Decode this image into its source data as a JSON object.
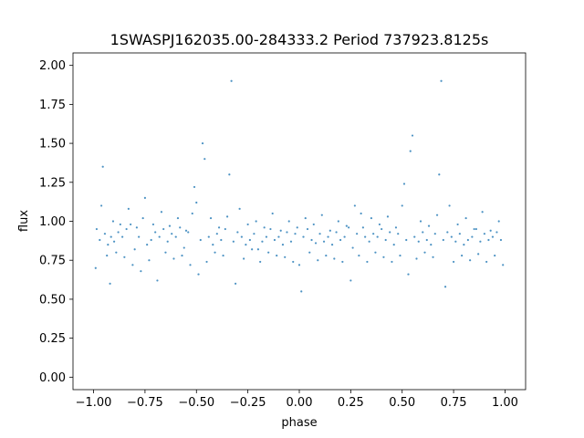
{
  "chart_data": {
    "type": "scatter",
    "title": "1SWASPJ162035.00-284333.2 Period 737923.8125s",
    "xlabel": "phase",
    "ylabel": "flux",
    "xlim": [
      -1.1,
      1.1
    ],
    "ylim": [
      -0.08,
      2.08
    ],
    "x_ticks": [
      -1.0,
      -0.75,
      -0.5,
      -0.25,
      0.0,
      0.25,
      0.5,
      0.75,
      1.0
    ],
    "x_tick_labels": [
      "−1.00",
      "−0.75",
      "−0.50",
      "−0.25",
      "0.00",
      "0.25",
      "0.50",
      "0.75",
      "1.00"
    ],
    "y_ticks": [
      0.0,
      0.25,
      0.5,
      0.75,
      1.0,
      1.25,
      1.5,
      1.75,
      2.0
    ],
    "y_tick_labels": [
      "0.00",
      "0.25",
      "0.50",
      "0.75",
      "1.00",
      "1.25",
      "1.50",
      "1.75",
      "2.00"
    ],
    "grid": false,
    "marker_color": "#1f77b4",
    "series": [
      {
        "x": [
          -0.985,
          -0.97,
          -0.962,
          -0.945,
          -0.93,
          -0.915,
          -0.9,
          -0.88,
          -0.86,
          -0.84,
          -0.82,
          -0.8,
          -0.78,
          -0.76,
          -0.74,
          -0.72,
          -0.7,
          -0.68,
          -0.66,
          -0.64,
          -0.62,
          -0.6,
          -0.58,
          -0.56,
          -0.54,
          -0.52,
          -0.5,
          -0.48,
          -0.46,
          -0.44,
          -0.42,
          -0.4,
          -0.38,
          -0.36,
          -0.34,
          -0.32,
          -0.3,
          -0.28,
          -0.26,
          -0.24,
          -0.22,
          -0.2,
          -0.18,
          -0.16,
          -0.14,
          -0.12,
          -0.1,
          -0.08,
          -0.06,
          -0.04,
          -0.02,
          0.0,
          0.02,
          0.04,
          0.06,
          0.08,
          0.1,
          0.12,
          0.14,
          0.16,
          0.18,
          0.2,
          0.22,
          0.24,
          0.26,
          0.28,
          0.3,
          0.32,
          0.34,
          0.36,
          0.38,
          0.4,
          0.42,
          0.44,
          0.46,
          0.48,
          0.5,
          0.52,
          0.54,
          0.56,
          0.58,
          0.6,
          0.62,
          0.64,
          0.66,
          0.68,
          0.7,
          0.72,
          0.74,
          0.76,
          0.78,
          0.8,
          0.82,
          0.84,
          0.86,
          0.88,
          0.9,
          0.92,
          0.94,
          0.96,
          0.98,
          -0.99,
          -0.955,
          -0.935,
          -0.92,
          -0.905,
          -0.89,
          -0.87,
          -0.85,
          -0.83,
          -0.81,
          -0.79,
          -0.77,
          -0.75,
          -0.73,
          -0.71,
          -0.69,
          -0.67,
          -0.65,
          -0.63,
          -0.61,
          -0.59,
          -0.57,
          -0.55,
          -0.53,
          -0.51,
          -0.49,
          -0.47,
          -0.45,
          -0.43,
          -0.41,
          -0.39,
          -0.37,
          -0.35,
          -0.33,
          -0.31,
          -0.29,
          -0.27,
          -0.25,
          -0.23,
          -0.21,
          -0.19,
          -0.17,
          -0.15,
          -0.13,
          -0.11,
          -0.09,
          -0.07,
          -0.05,
          -0.03,
          -0.01,
          0.01,
          0.03,
          0.05,
          0.07,
          0.09,
          0.11,
          0.13,
          0.15,
          0.17,
          0.19,
          0.21,
          0.23,
          0.25,
          0.27,
          0.29,
          0.31,
          0.33,
          0.35,
          0.37,
          0.39,
          0.41,
          0.43,
          0.45,
          0.47,
          0.49,
          0.51,
          0.53,
          0.55,
          0.57,
          0.59,
          0.61,
          0.63,
          0.65,
          0.67,
          0.69,
          0.71,
          0.73,
          0.75,
          0.77,
          0.79,
          0.81,
          0.83,
          0.85,
          0.87,
          0.89,
          0.91,
          0.93,
          0.95,
          0.97,
          0.99
        ],
        "y": [
          0.95,
          0.88,
          1.1,
          0.92,
          0.85,
          0.9,
          0.87,
          0.93,
          0.9,
          0.95,
          0.98,
          0.82,
          0.9,
          1.02,
          0.85,
          0.88,
          0.93,
          0.9,
          0.95,
          0.87,
          0.92,
          0.9,
          0.96,
          0.83,
          0.93,
          1.05,
          1.12,
          0.88,
          1.4,
          0.9,
          0.85,
          0.92,
          0.88,
          0.95,
          1.3,
          0.87,
          0.93,
          0.9,
          0.85,
          0.88,
          0.92,
          0.82,
          0.87,
          0.9,
          0.95,
          0.88,
          0.9,
          0.85,
          0.93,
          0.87,
          0.92,
          0.72,
          0.9,
          0.95,
          0.88,
          0.86,
          0.92,
          0.87,
          0.9,
          0.85,
          0.93,
          0.88,
          0.9,
          0.96,
          0.83,
          0.92,
          1.05,
          0.9,
          0.87,
          0.92,
          0.9,
          0.95,
          0.88,
          0.93,
          0.85,
          0.92,
          1.1,
          0.88,
          1.45,
          0.9,
          0.87,
          0.93,
          0.88,
          0.85,
          0.92,
          1.3,
          0.88,
          0.93,
          0.9,
          0.87,
          0.92,
          0.85,
          0.88,
          0.9,
          0.95,
          0.87,
          0.92,
          0.88,
          0.9,
          0.93,
          0.88,
          0.7,
          1.35,
          0.78,
          0.6,
          1.0,
          0.8,
          0.98,
          0.77,
          1.08,
          0.72,
          0.96,
          0.68,
          1.15,
          0.75,
          0.98,
          0.62,
          1.06,
          0.8,
          0.97,
          0.76,
          1.02,
          0.78,
          0.94,
          0.72,
          1.22,
          0.66,
          1.5,
          0.74,
          1.02,
          0.8,
          0.96,
          0.78,
          1.03,
          1.9,
          0.6,
          1.08,
          0.76,
          0.98,
          0.82,
          1.0,
          0.74,
          0.96,
          0.8,
          1.05,
          0.78,
          0.94,
          0.77,
          1.0,
          0.74,
          0.96,
          0.55,
          1.02,
          0.8,
          0.98,
          0.75,
          1.04,
          0.78,
          0.94,
          0.76,
          1.0,
          0.74,
          0.97,
          0.62,
          1.1,
          0.78,
          0.96,
          0.74,
          1.02,
          0.8,
          0.98,
          0.77,
          1.03,
          0.74,
          0.96,
          0.78,
          1.24,
          0.66,
          1.55,
          0.76,
          1.0,
          0.8,
          0.97,
          0.77,
          1.04,
          1.9,
          0.58,
          1.1,
          0.74,
          0.98,
          0.78,
          1.02,
          0.75,
          0.95,
          0.79,
          1.06,
          0.74,
          0.94,
          0.78,
          1.0,
          0.72
        ]
      }
    ]
  }
}
